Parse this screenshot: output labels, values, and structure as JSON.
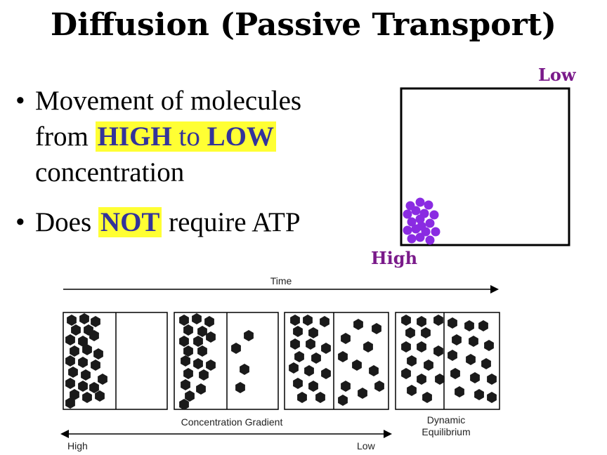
{
  "title": "Diffusion (Passive Transport)",
  "bullets": {
    "b1_line1": "Movement of molecules",
    "b1_from": "from",
    "b1_high": "HIGH",
    "b1_to": "to",
    "b1_low": "LOW",
    "b1_line3": "concentration",
    "b2_pre": "Does",
    "b2_not": "NOT",
    "b2_post": "require ATP",
    "bullet_glyph": "•"
  },
  "box": {
    "low_label": "Low",
    "high_label": "High",
    "particle_color": "#8a2be2"
  },
  "timeline": {
    "time_label": "Time",
    "gradient_label": "Concentration Gradient",
    "equilibrium_line1": "Dynamic",
    "equilibrium_line2": "Equilibrium",
    "high_label": "High",
    "low_label": "Low"
  },
  "colors": {
    "highlight": "#ffff33",
    "accent_text": "#33339b",
    "purple_label": "#7a1a8a",
    "hexagon": "#1a1a1a"
  }
}
